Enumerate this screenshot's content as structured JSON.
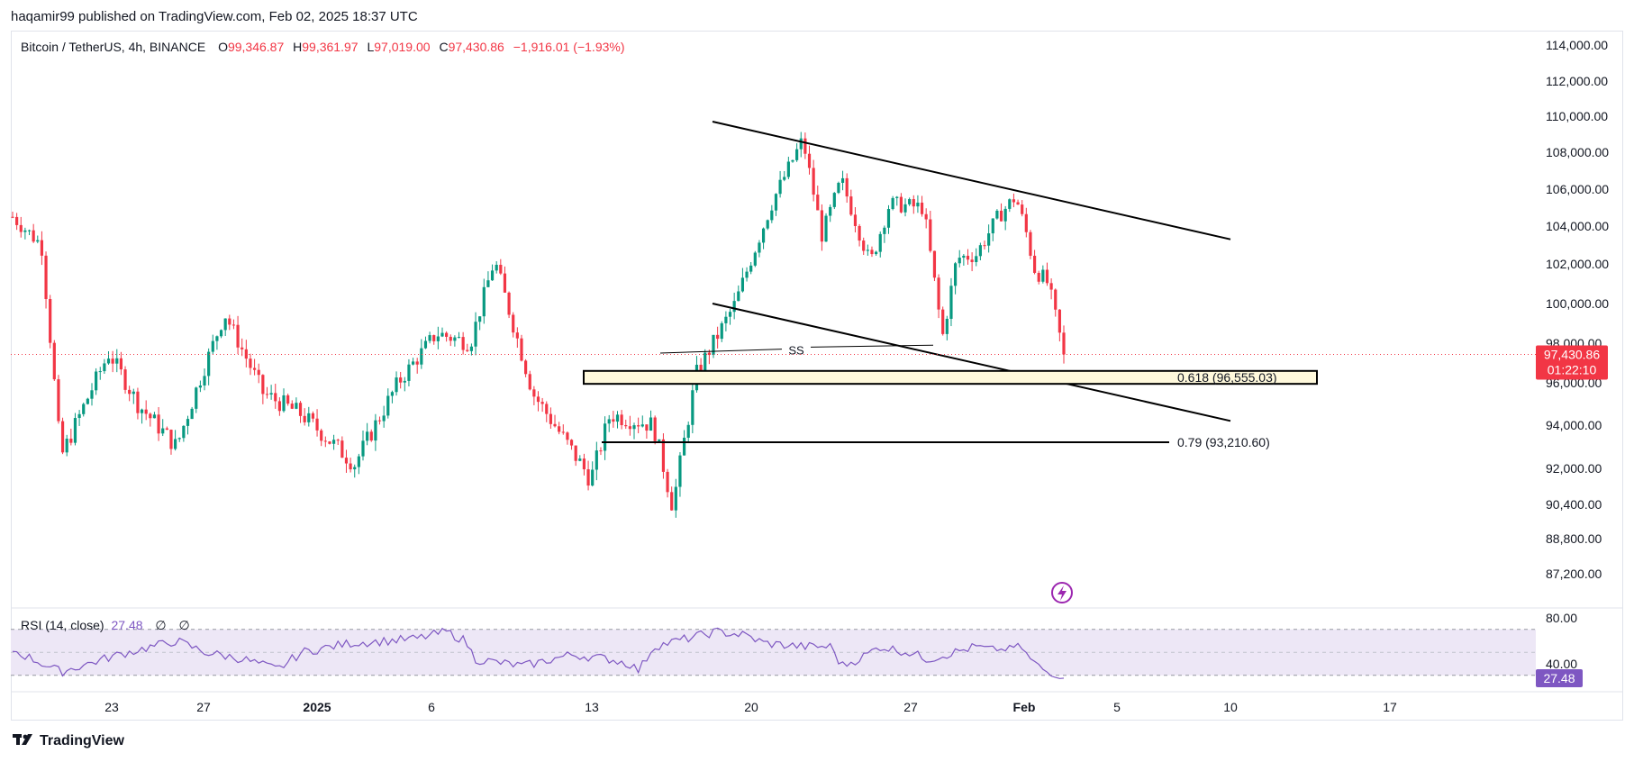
{
  "caption": "haqamir99 published on TradingView.com, Feb 02, 2025 18:37 UTC",
  "legend": {
    "symbol": "Bitcoin / TetherUS, 4h, BINANCE",
    "o_label": "O",
    "o_value": "99,346.87",
    "h_label": "H",
    "h_value": "99,361.97",
    "l_label": "L",
    "l_value": "97,019.00",
    "c_label": "C",
    "c_value": "97,430.86",
    "change": "−1,916.01 (−1.93%)"
  },
  "rsi_legend": {
    "label": "RSI (14, close)",
    "value": "27.48",
    "na1": "∅",
    "na2": "∅"
  },
  "footer": {
    "logo_icon": "tradingview-logo-icon",
    "brand": "TradingView"
  },
  "colors": {
    "up": "#089981",
    "down": "#f23645",
    "rsi": "#7e57c2",
    "band": "#ede7f6",
    "fib_zone": "#fff9dc"
  },
  "chart_data": {
    "type": "candlestick",
    "symbol": "Bitcoin / TetherUS",
    "interval": "4h",
    "y_ticks": [
      "114,000.00",
      "112,000.00",
      "110,000.00",
      "108,000.00",
      "106,000.00",
      "104,000.00",
      "102,000.00",
      "100,000.00",
      "98,000.00",
      "96,000.00",
      "94,000.00",
      "92,000.00",
      "90,400.00",
      "88,800.00",
      "87,200.00"
    ],
    "y_tick_values": [
      114000,
      112000,
      110000,
      108000,
      106000,
      104000,
      102000,
      100000,
      98000,
      96000,
      94000,
      92000,
      90400,
      88800,
      87200
    ],
    "x_ticks": [
      "23",
      "27",
      "2025",
      "6",
      "13",
      "20",
      "27",
      "Feb",
      "5",
      "10",
      "17"
    ],
    "last_price": "97,430.86",
    "countdown": "01:22:10",
    "path_keypoints": [
      {
        "t": 0,
        "p": 104500
      },
      {
        "t": 0.03,
        "p": 103000
      },
      {
        "t": 0.05,
        "p": 92500
      },
      {
        "t": 0.1,
        "p": 97500
      },
      {
        "t": 0.13,
        "p": 95000
      },
      {
        "t": 0.17,
        "p": 93000
      },
      {
        "t": 0.22,
        "p": 99500
      },
      {
        "t": 0.26,
        "p": 95500
      },
      {
        "t": 0.3,
        "p": 94500
      },
      {
        "t": 0.355,
        "p": 92200
      },
      {
        "t": 0.4,
        "p": 96000
      },
      {
        "t": 0.44,
        "p": 98500
      },
      {
        "t": 0.475,
        "p": 98000
      },
      {
        "t": 0.5,
        "p": 102200
      },
      {
        "t": 0.54,
        "p": 95500
      },
      {
        "t": 0.6,
        "p": 91500
      },
      {
        "t": 0.62,
        "p": 94500
      },
      {
        "t": 0.665,
        "p": 94000
      },
      {
        "t": 0.685,
        "p": 90300
      },
      {
        "t": 0.71,
        "p": 96500
      },
      {
        "t": 0.75,
        "p": 100000
      },
      {
        "t": 0.79,
        "p": 105500
      },
      {
        "t": 0.82,
        "p": 108700
      },
      {
        "t": 0.84,
        "p": 103500
      },
      {
        "t": 0.86,
        "p": 106500
      },
      {
        "t": 0.89,
        "p": 102000
      },
      {
        "t": 0.91,
        "p": 105200
      },
      {
        "t": 0.945,
        "p": 105000
      },
      {
        "t": 0.965,
        "p": 98300
      },
      {
        "t": 0.98,
        "p": 102300
      },
      {
        "t": 1.0,
        "p": 102500
      }
    ],
    "path_keypoints_tail": [
      {
        "t": 0,
        "p": 102500
      },
      {
        "t": 0.25,
        "p": 104500
      },
      {
        "t": 0.45,
        "p": 105600
      },
      {
        "t": 0.58,
        "p": 103500
      },
      {
        "t": 0.66,
        "p": 101800
      },
      {
        "t": 0.82,
        "p": 101000
      },
      {
        "t": 1.0,
        "p": 97430
      }
    ],
    "trendlines": [
      {
        "from": {
          "date": "Jan 18",
          "price": 109700
        },
        "to": {
          "date": "Feb 9",
          "price": 103300
        }
      },
      {
        "from": {
          "date": "Jan 18",
          "price": 100000
        },
        "to": {
          "date": "Feb 9",
          "price": 94200
        }
      }
    ],
    "ss_label": "SS",
    "ss_level": 97900,
    "fib_levels": [
      {
        "label": "0.618 (96,555.03)",
        "price": 96555.03
      },
      {
        "label": "0.79 (93,210.60)",
        "price": 93210.6
      }
    ],
    "rsi": {
      "period": 14,
      "value": 27.48,
      "y_ticks": [
        "80.00",
        "40.00"
      ],
      "upper_band": 70,
      "lower_band": 30,
      "keypoints": [
        {
          "t": 0,
          "p": 52
        },
        {
          "t": 0.05,
          "p": 33
        },
        {
          "t": 0.11,
          "p": 48
        },
        {
          "t": 0.13,
          "p": 52
        },
        {
          "t": 0.17,
          "p": 60
        },
        {
          "t": 0.2,
          "p": 50
        },
        {
          "t": 0.24,
          "p": 44
        },
        {
          "t": 0.275,
          "p": 35
        },
        {
          "t": 0.3,
          "p": 50
        },
        {
          "t": 0.35,
          "p": 58
        },
        {
          "t": 0.39,
          "p": 60
        },
        {
          "t": 0.42,
          "p": 62
        },
        {
          "t": 0.45,
          "p": 68
        },
        {
          "t": 0.47,
          "p": 60
        },
        {
          "t": 0.48,
          "p": 44
        },
        {
          "t": 0.53,
          "p": 38
        },
        {
          "t": 0.58,
          "p": 48
        },
        {
          "t": 0.62,
          "p": 44
        },
        {
          "t": 0.64,
          "p": 40
        },
        {
          "t": 0.65,
          "p": 34
        },
        {
          "t": 0.665,
          "p": 55
        },
        {
          "t": 0.7,
          "p": 62
        },
        {
          "t": 0.73,
          "p": 68
        },
        {
          "t": 0.76,
          "p": 65
        },
        {
          "t": 0.78,
          "p": 58
        },
        {
          "t": 0.82,
          "p": 55
        },
        {
          "t": 0.85,
          "p": 55
        },
        {
          "t": 0.86,
          "p": 38
        },
        {
          "t": 0.88,
          "p": 45
        },
        {
          "t": 0.9,
          "p": 55
        },
        {
          "t": 0.93,
          "p": 50
        },
        {
          "t": 0.95,
          "p": 44
        },
        {
          "t": 1.0,
          "p": 55
        }
      ],
      "tail_keypoints": [
        {
          "t": 0,
          "p": 55
        },
        {
          "t": 0.3,
          "p": 52
        },
        {
          "t": 0.5,
          "p": 56
        },
        {
          "t": 0.62,
          "p": 44
        },
        {
          "t": 0.8,
          "p": 33
        },
        {
          "t": 1.0,
          "p": 27.48
        }
      ]
    }
  }
}
